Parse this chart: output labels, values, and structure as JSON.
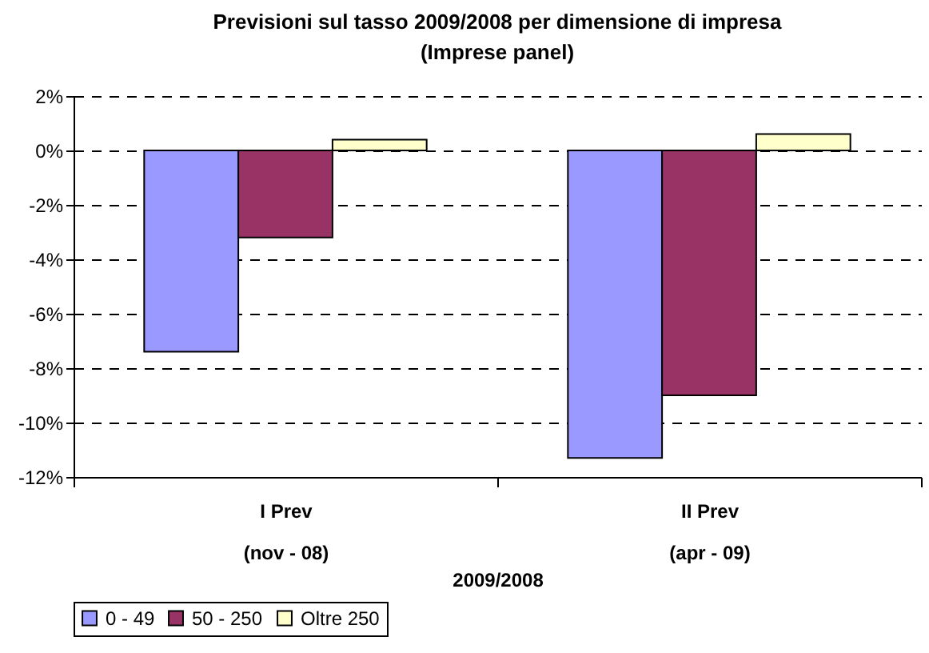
{
  "chart_data": {
    "type": "bar",
    "title": "Previsioni sul tasso 2009/2008 per dimensione di impresa",
    "subtitle": "(Imprese panel)",
    "xlabel": "2009/2008",
    "categories": [
      "I Prev\n(nov - 08)",
      "II Prev\n(apr - 09)"
    ],
    "series": [
      {
        "name": "0 - 49",
        "color": "#9999ff",
        "values": [
          -7.4,
          -11.3
        ]
      },
      {
        "name": "50 - 250",
        "color": "#993366",
        "values": [
          -3.2,
          -9.0
        ]
      },
      {
        "name": "Oltre 250",
        "color": "#ffffcc",
        "values": [
          0.4,
          0.6
        ]
      }
    ],
    "ylim": [
      -12,
      2
    ],
    "yticks": [
      {
        "value": -12,
        "label": "-12%"
      },
      {
        "value": -10,
        "label": "-10%"
      },
      {
        "value": -8,
        "label": "-8%"
      },
      {
        "value": -6,
        "label": "-6%"
      },
      {
        "value": -4,
        "label": "-4%"
      },
      {
        "value": -2,
        "label": "-2%"
      },
      {
        "value": 0,
        "label": "0%"
      },
      {
        "value": 2,
        "label": "2%"
      }
    ],
    "grid": "y",
    "legend": "bottom"
  }
}
